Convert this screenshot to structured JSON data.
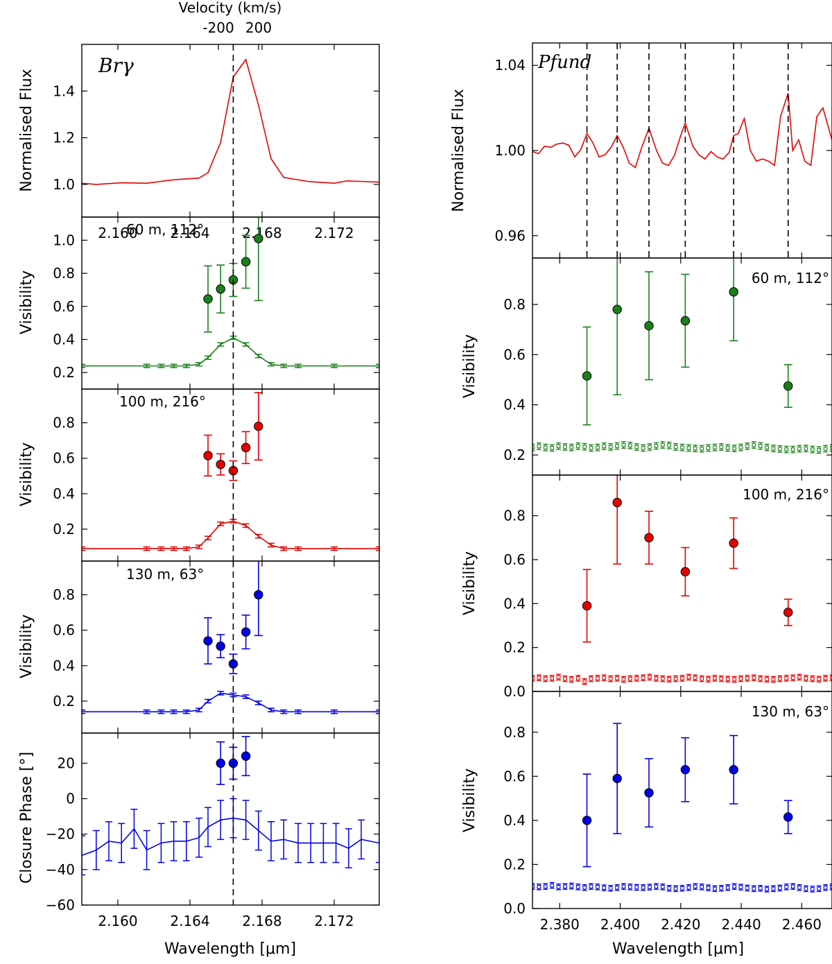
{
  "figure": {
    "left_xlabel": "Wavelength [μm]",
    "right_xlabel": "Wavelength [μm]",
    "top_axis_label": "Velocity (km/s)",
    "top_ticks": [
      -200,
      200
    ],
    "ylabel_flux": "Normalised Flux",
    "ylabel_vis": "Visibility",
    "ylabel_cp": "Closure Phase [°]"
  },
  "colors": {
    "green": "#1a7f1a",
    "red": "#e50000",
    "blue": "#0000e5",
    "black": "#000000"
  },
  "chart_data": [
    {
      "id": "L0",
      "type": "line",
      "title": "Brγ",
      "ylabel": "Normalised Flux",
      "xlim": [
        2.158,
        2.1745
      ],
      "ylim": [
        0.86,
        1.6
      ],
      "yticks": [
        1.0,
        1.2,
        1.4
      ],
      "ytick_labels": [
        "1.0",
        "1.2",
        "1.4"
      ],
      "xticks": [
        2.16,
        2.164,
        2.168,
        2.172
      ],
      "xtick_labels": [
        "2.160",
        "2.164",
        "2.168",
        "2.172"
      ],
      "vlines": [
        2.1664
      ],
      "series": [
        {
          "name": "Brγ flux",
          "color": "red",
          "x": [
            2.158,
            2.1588,
            2.1602,
            2.1616,
            2.1631,
            2.1645,
            2.165,
            2.1657,
            2.1664,
            2.1671,
            2.1678,
            2.1685,
            2.1692,
            2.1706,
            2.172,
            2.1727,
            2.1745
          ],
          "y": [
            1.005,
            1.0,
            1.007,
            1.005,
            1.02,
            1.027,
            1.05,
            1.18,
            1.46,
            1.535,
            1.34,
            1.11,
            1.03,
            1.012,
            1.005,
            1.015,
            1.01
          ]
        }
      ]
    },
    {
      "id": "L1",
      "type": "scatter",
      "label": "60 m, 112°",
      "label_color": "green",
      "ylabel": "Visibility",
      "xlim": [
        2.158,
        2.1745
      ],
      "ylim": [
        0.1,
        1.14
      ],
      "yticks": [
        0.2,
        0.4,
        0.6,
        0.8,
        1.0
      ],
      "ytick_labels": [
        "0.2",
        "0.4",
        "0.6",
        "0.8",
        "1.0"
      ],
      "xticks": [
        2.16,
        2.164,
        2.168,
        2.172
      ],
      "vlines": [
        2.1664
      ],
      "series": [
        {
          "name": "line visibility",
          "color": "green",
          "style": "points",
          "x": [
            2.165,
            2.1657,
            2.1664,
            2.1671,
            2.1678
          ],
          "y": [
            0.645,
            0.705,
            0.76,
            0.87,
            1.01
          ],
          "yerr": [
            0.2,
            0.145,
            0.1,
            0.16,
            0.375
          ]
        },
        {
          "name": "continuum visibility",
          "color": "green",
          "style": "line",
          "x": [
            2.158,
            2.1616,
            2.1624,
            2.1631,
            2.1638,
            2.1645,
            2.165,
            2.1657,
            2.1664,
            2.1671,
            2.1678,
            2.1685,
            2.1692,
            2.17,
            2.172,
            2.1745
          ],
          "y": [
            0.24,
            0.24,
            0.24,
            0.24,
            0.24,
            0.25,
            0.29,
            0.37,
            0.41,
            0.37,
            0.3,
            0.25,
            0.24,
            0.24,
            0.24,
            0.24
          ],
          "yerr": 0.01
        }
      ]
    },
    {
      "id": "L2",
      "type": "scatter",
      "label": "100 m, 216°",
      "label_color": "red",
      "ylabel": "Visibility",
      "xlim": [
        2.158,
        2.1745
      ],
      "ylim": [
        0.02,
        0.99
      ],
      "yticks": [
        0.2,
        0.4,
        0.6,
        0.8
      ],
      "ytick_labels": [
        "0.2",
        "0.4",
        "0.6",
        "0.8"
      ],
      "xticks": [
        2.16,
        2.164,
        2.168,
        2.172
      ],
      "vlines": [
        2.1664
      ],
      "series": [
        {
          "name": "line visibility",
          "color": "red",
          "style": "points",
          "x": [
            2.165,
            2.1657,
            2.1664,
            2.1671,
            2.1678
          ],
          "y": [
            0.615,
            0.565,
            0.53,
            0.66,
            0.78
          ],
          "yerr": [
            0.115,
            0.06,
            0.055,
            0.09,
            0.19
          ]
        },
        {
          "name": "continuum visibility",
          "color": "red",
          "style": "line",
          "x": [
            2.158,
            2.1616,
            2.1624,
            2.1631,
            2.1638,
            2.1645,
            2.165,
            2.1657,
            2.1664,
            2.1671,
            2.1678,
            2.1685,
            2.1692,
            2.17,
            2.172,
            2.1745
          ],
          "y": [
            0.09,
            0.09,
            0.09,
            0.09,
            0.09,
            0.1,
            0.15,
            0.23,
            0.245,
            0.22,
            0.16,
            0.11,
            0.09,
            0.09,
            0.09,
            0.09
          ],
          "yerr": 0.01
        }
      ]
    },
    {
      "id": "L3",
      "type": "scatter",
      "label": "130 m, 63°",
      "label_color": "blue",
      "ylabel": "Visibility",
      "xlim": [
        2.158,
        2.1745
      ],
      "ylim": [
        0.02,
        0.99
      ],
      "yticks": [
        0.2,
        0.4,
        0.6,
        0.8
      ],
      "ytick_labels": [
        "0.2",
        "0.4",
        "0.6",
        "0.8"
      ],
      "xticks": [
        2.16,
        2.164,
        2.168,
        2.172
      ],
      "vlines": [
        2.1664
      ],
      "series": [
        {
          "name": "line visibility",
          "color": "blue",
          "style": "points",
          "x": [
            2.165,
            2.1657,
            2.1664,
            2.1671,
            2.1678
          ],
          "y": [
            0.54,
            0.51,
            0.41,
            0.59,
            0.8
          ],
          "yerr": [
            0.13,
            0.065,
            0.055,
            0.095,
            0.23
          ]
        },
        {
          "name": "continuum visibility",
          "color": "blue",
          "style": "line",
          "x": [
            2.158,
            2.1616,
            2.1624,
            2.1631,
            2.1638,
            2.1645,
            2.165,
            2.1657,
            2.1664,
            2.1671,
            2.1678,
            2.1685,
            2.1692,
            2.17,
            2.172,
            2.1745
          ],
          "y": [
            0.14,
            0.14,
            0.14,
            0.14,
            0.14,
            0.15,
            0.2,
            0.245,
            0.235,
            0.225,
            0.19,
            0.15,
            0.14,
            0.14,
            0.14,
            0.14
          ],
          "yerr": 0.01
        }
      ]
    },
    {
      "id": "L4",
      "type": "scatter",
      "ylabel": "Closure Phase [°]",
      "xlabel": "Wavelength [μm]",
      "xlim": [
        2.158,
        2.1745
      ],
      "ylim": [
        -60,
        37
      ],
      "yticks": [
        -60,
        -40,
        -20,
        0,
        20
      ],
      "ytick_labels": [
        "−60",
        "−40",
        "−20",
        "0",
        "20"
      ],
      "xticks": [
        2.16,
        2.164,
        2.168,
        2.172
      ],
      "xtick_labels": [
        "2.160",
        "2.164",
        "2.168",
        "2.172"
      ],
      "vlines": [
        2.1664
      ],
      "series": [
        {
          "name": "line closure phase",
          "color": "blue",
          "style": "points",
          "x": [
            2.1657,
            2.1664,
            2.1671
          ],
          "y": [
            20,
            20,
            24
          ],
          "yerr": [
            12,
            9,
            11
          ]
        },
        {
          "name": "continuum closure phase",
          "color": "blue",
          "style": "line",
          "x": [
            2.158,
            2.1588,
            2.1595,
            2.1602,
            2.1609,
            2.1616,
            2.1624,
            2.1631,
            2.1638,
            2.1645,
            2.165,
            2.1657,
            2.1664,
            2.1671,
            2.1678,
            2.1685,
            2.1692,
            2.17,
            2.1707,
            2.1714,
            2.1721,
            2.1728,
            2.1735,
            2.1745
          ],
          "y": [
            -32,
            -29,
            -24,
            -25,
            -17,
            -29,
            -25,
            -24,
            -24,
            -22,
            -16,
            -12,
            -11,
            -12,
            -18,
            -24,
            -23,
            -25,
            -25,
            -25,
            -25,
            -28,
            -23,
            -25
          ],
          "yerr": 11
        }
      ]
    },
    {
      "id": "R0",
      "type": "line",
      "title": "Pfund",
      "ylabel": "Normalised Flux",
      "xlim": [
        2.371,
        2.47
      ],
      "ylim": [
        0.9495,
        1.0505
      ],
      "yticks": [
        0.96,
        1.0,
        1.04
      ],
      "ytick_labels": [
        "0.96",
        "1.00",
        "1.04"
      ],
      "xticks": [
        2.38,
        2.4,
        2.42,
        2.44,
        2.46
      ],
      "vlines": [
        2.389,
        2.399,
        2.4095,
        2.4215,
        2.4375,
        2.4555
      ],
      "series": [
        {
          "name": "Pfund flux",
          "color": "red",
          "x": [
            2.371,
            2.373,
            2.375,
            2.377,
            2.379,
            2.381,
            2.383,
            2.385,
            2.387,
            2.389,
            2.391,
            2.393,
            2.395,
            2.397,
            2.399,
            2.401,
            2.403,
            2.405,
            2.407,
            2.4095,
            2.412,
            2.414,
            2.416,
            2.418,
            2.42,
            2.4215,
            2.424,
            2.426,
            2.428,
            2.43,
            2.432,
            2.434,
            2.436,
            2.4375,
            2.439,
            2.441,
            2.443,
            2.445,
            2.447,
            2.449,
            2.451,
            2.453,
            2.4555,
            2.457,
            2.459,
            2.461,
            2.463,
            2.465,
            2.467,
            2.468,
            2.47
          ],
          "y": [
            0.9995,
            0.9985,
            1.002,
            1.0015,
            1.003,
            1.0035,
            1.0025,
            0.997,
            1.0005,
            1.008,
            1.0035,
            0.997,
            0.998,
            1.0015,
            1.007,
            1.0015,
            0.994,
            0.992,
            1.001,
            1.0105,
            1.0,
            0.994,
            0.993,
            0.998,
            1.007,
            1.013,
            1.002,
            0.998,
            0.996,
            0.9995,
            0.997,
            0.996,
            0.999,
            1.007,
            1.008,
            1.015,
            1.0,
            0.995,
            0.996,
            0.995,
            0.993,
            1.016,
            1.027,
            1.0,
            1.005,
            0.995,
            0.993,
            1.016,
            1.02,
            1.015,
            1.005
          ]
        }
      ]
    },
    {
      "id": "R1",
      "type": "scatter",
      "label": "60 m, 112°",
      "label_color": "green",
      "ylabel": "Visibility",
      "xlim": [
        2.371,
        2.47
      ],
      "ylim": [
        0.12,
        0.985
      ],
      "yticks": [
        0.2,
        0.4,
        0.6,
        0.8
      ],
      "ytick_labels": [
        "0.2",
        "0.4",
        "0.6",
        "0.8"
      ],
      "xticks": [
        2.38,
        2.4,
        2.42,
        2.44,
        2.46
      ],
      "vlines": [],
      "series": [
        {
          "name": "line visibility",
          "color": "green",
          "style": "points",
          "x": [
            2.389,
            2.399,
            2.4095,
            2.4215,
            2.4375,
            2.4555
          ],
          "y": [
            0.515,
            0.78,
            0.715,
            0.735,
            0.85,
            0.475
          ],
          "yerr": [
            0.195,
            0.34,
            0.215,
            0.185,
            0.195,
            0.085
          ]
        },
        {
          "name": "continuum visibility",
          "color": "green",
          "style": "open",
          "xstart": 2.371,
          "xend": 2.47,
          "count": 47,
          "y": [
            0.23,
            0.235,
            0.23,
            0.228,
            0.235,
            0.232,
            0.23,
            0.235,
            0.233,
            0.228,
            0.23,
            0.235,
            0.232,
            0.236,
            0.24,
            0.238,
            0.232,
            0.228,
            0.232,
            0.236,
            0.24,
            0.238,
            0.232,
            0.23,
            0.228,
            0.226,
            0.225,
            0.228,
            0.23,
            0.232,
            0.228,
            0.226,
            0.23,
            0.235,
            0.24,
            0.236,
            0.23,
            0.226,
            0.224,
            0.222,
            0.222,
            0.225,
            0.226,
            0.222,
            0.22,
            0.225,
            0.228
          ],
          "yerr": 0.013
        }
      ]
    },
    {
      "id": "R2",
      "type": "scatter",
      "label": "100 m, 216°",
      "label_color": "red",
      "ylabel": "Visibility",
      "xlim": [
        2.371,
        2.47
      ],
      "ylim": [
        0.0,
        0.985
      ],
      "yticks": [
        0.0,
        0.2,
        0.4,
        0.6,
        0.8
      ],
      "ytick_labels": [
        "0.0",
        "0.2",
        "0.4",
        "0.6",
        "0.8"
      ],
      "xticks": [
        2.38,
        2.4,
        2.42,
        2.44,
        2.46
      ],
      "vlines": [],
      "series": [
        {
          "name": "line visibility",
          "color": "red",
          "style": "points",
          "x": [
            2.389,
            2.399,
            2.4095,
            2.4215,
            2.4375,
            2.4555
          ],
          "y": [
            0.39,
            0.86,
            0.7,
            0.545,
            0.675,
            0.36
          ],
          "yerr": [
            0.165,
            0.28,
            0.12,
            0.11,
            0.115,
            0.06
          ]
        },
        {
          "name": "continuum visibility",
          "color": "red",
          "style": "open",
          "xstart": 2.371,
          "xend": 2.47,
          "count": 47,
          "y": [
            0.06,
            0.062,
            0.058,
            0.06,
            0.065,
            0.058,
            0.055,
            0.06,
            0.045,
            0.058,
            0.06,
            0.062,
            0.058,
            0.06,
            0.055,
            0.058,
            0.06,
            0.062,
            0.065,
            0.06,
            0.058,
            0.056,
            0.058,
            0.06,
            0.065,
            0.062,
            0.058,
            0.056,
            0.06,
            0.058,
            0.056,
            0.055,
            0.058,
            0.06,
            0.062,
            0.058,
            0.056,
            0.055,
            0.058,
            0.06,
            0.062,
            0.065,
            0.06,
            0.058,
            0.056,
            0.06,
            0.062
          ],
          "yerr": 0.013
        }
      ]
    },
    {
      "id": "R3",
      "type": "scatter",
      "label": "130 m, 63°",
      "label_color": "blue",
      "ylabel": "Visibility",
      "xlabel": "Wavelength [μm]",
      "xlim": [
        2.371,
        2.47
      ],
      "ylim": [
        0.0,
        0.985
      ],
      "yticks": [
        0.0,
        0.2,
        0.4,
        0.6,
        0.8
      ],
      "ytick_labels": [
        "0.0",
        "0.2",
        "0.4",
        "0.6",
        "0.8"
      ],
      "xticks": [
        2.38,
        2.4,
        2.42,
        2.44,
        2.46
      ],
      "xtick_labels": [
        "2.380",
        "2.400",
        "2.420",
        "2.440",
        "2.460"
      ],
      "vlines": [],
      "series": [
        {
          "name": "line visibility",
          "color": "blue",
          "style": "points",
          "x": [
            2.389,
            2.399,
            2.4095,
            2.4215,
            2.4375,
            2.4555
          ],
          "y": [
            0.4,
            0.59,
            0.525,
            0.63,
            0.63,
            0.415
          ],
          "yerr": [
            0.21,
            0.25,
            0.155,
            0.145,
            0.155,
            0.075
          ]
        },
        {
          "name": "continuum visibility",
          "color": "blue",
          "style": "open",
          "xstart": 2.371,
          "xend": 2.47,
          "count": 47,
          "y": [
            0.1,
            0.098,
            0.1,
            0.105,
            0.098,
            0.1,
            0.102,
            0.098,
            0.095,
            0.1,
            0.098,
            0.094,
            0.092,
            0.095,
            0.1,
            0.098,
            0.096,
            0.095,
            0.097,
            0.1,
            0.098,
            0.092,
            0.09,
            0.092,
            0.095,
            0.1,
            0.098,
            0.094,
            0.09,
            0.092,
            0.095,
            0.1,
            0.097,
            0.093,
            0.09,
            0.092,
            0.088,
            0.09,
            0.093,
            0.098,
            0.1,
            0.095,
            0.09,
            0.088,
            0.09,
            0.095,
            0.098
          ],
          "yerr": 0.013
        }
      ]
    }
  ]
}
